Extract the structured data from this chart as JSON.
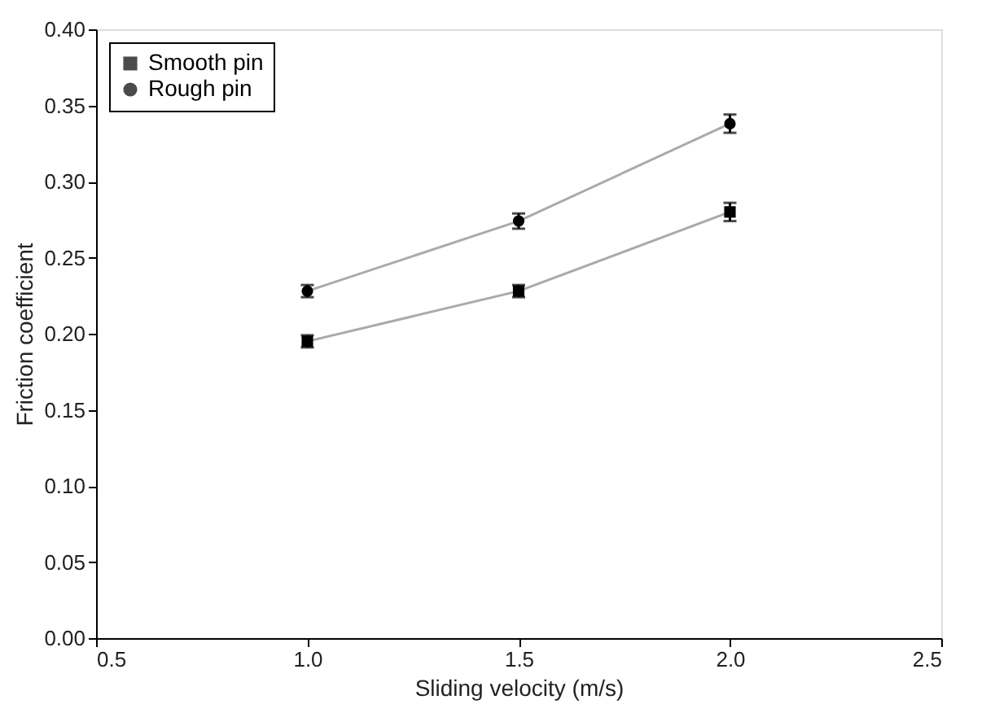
{
  "chart_data": {
    "type": "line",
    "xlabel": "Sliding velocity (m/s)",
    "ylabel": "Friction coefficient",
    "x": [
      1.0,
      1.5,
      2.0
    ],
    "series": [
      {
        "name": "Smooth pin",
        "color": "#000000",
        "marker": "square",
        "values": [
          0.195,
          0.228,
          0.28
        ],
        "errors": [
          0.004,
          0.004,
          0.006
        ]
      },
      {
        "name": "Rough pin",
        "color": "#000000",
        "marker": "circle",
        "values": [
          0.228,
          0.274,
          0.338
        ],
        "errors": [
          0.004,
          0.005,
          0.006
        ]
      }
    ],
    "xlim": [
      0.5,
      2.5
    ],
    "xticks": [
      0.5,
      {
        "value": 1,
        "label": "1.0"
      },
      1.5,
      {
        "value": 2,
        "label": "2.0"
      },
      2.5
    ],
    "ylim": [
      0,
      0.4
    ],
    "yticks": [
      {
        "value": 0,
        "label": "0.00"
      },
      0.05,
      {
        "value": 0.1,
        "label": "0.10"
      },
      0.15,
      {
        "value": 0.2,
        "label": "0.20"
      },
      0.25,
      {
        "value": 0.3,
        "label": "0.30"
      },
      0.35,
      {
        "value": 0.4,
        "label": "0.40"
      }
    ],
    "grid": false,
    "legend": "top left",
    "line_style": "solid"
  }
}
